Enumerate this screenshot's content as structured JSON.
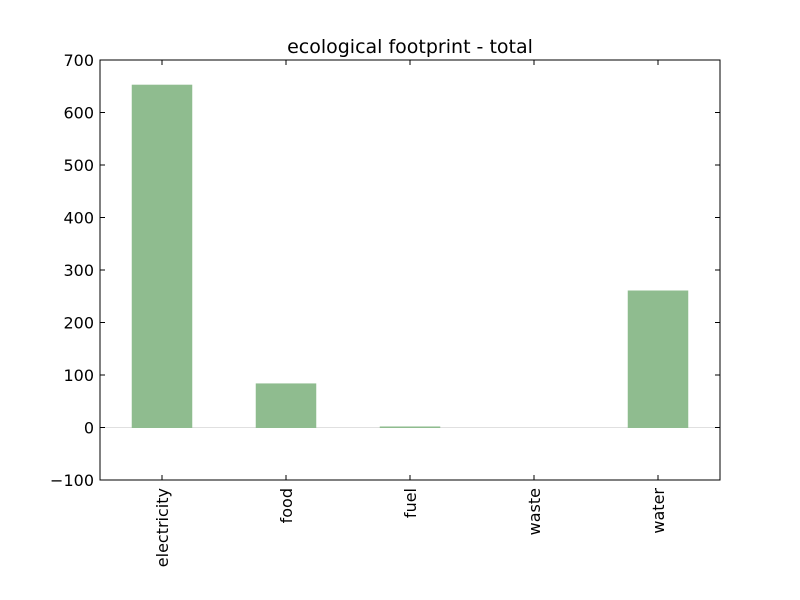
{
  "chart_data": {
    "type": "bar",
    "title": "ecological footprint - total",
    "xlabel": "",
    "ylabel": "",
    "categories": [
      "electricity",
      "food",
      "fuel",
      "waste",
      "water"
    ],
    "values": [
      652,
      83,
      1,
      0,
      260
    ],
    "ylim": [
      -100,
      700
    ],
    "yticks": [
      -100,
      0,
      100,
      200,
      300,
      400,
      500,
      600,
      700
    ],
    "ytick_labels": [
      "−100",
      "0",
      "100",
      "200",
      "300",
      "400",
      "500",
      "600",
      "700"
    ],
    "bar_color": "#8fbc8f",
    "baseline_color": "#e0e0e0",
    "grid": false,
    "legend": "none"
  }
}
